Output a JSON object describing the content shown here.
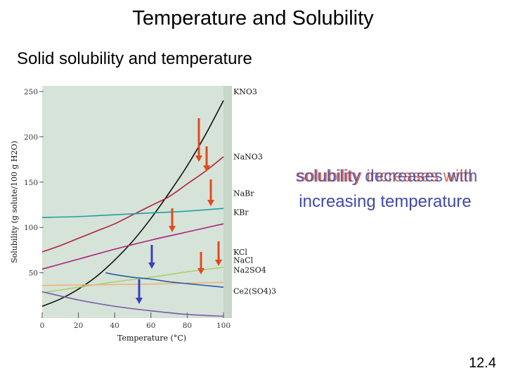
{
  "slide": {
    "title": "Temperature and Solubility",
    "subtitle": "Solid solubility and temperature",
    "note_line1_a": "solubility increases with",
    "note_line1_b": "solubility decreases with",
    "note_line2": "increasing temperature",
    "slide_number": "12.4"
  },
  "colors": {
    "plot_background": "#d6e3d8",
    "up_arrow": "#e24a1e",
    "down_arrow": "#3a3fbf"
  },
  "chart_data": {
    "type": "line",
    "xlabel": "Temperature (°C)",
    "ylabel": "Solubility (g solute/100 g H2O)",
    "xlim": [
      0,
      100
    ],
    "ylim": [
      0,
      250
    ],
    "xticks": [
      0,
      20,
      40,
      60,
      80,
      100
    ],
    "yticks": [
      50,
      100,
      150,
      200,
      250
    ],
    "grid": false,
    "series": [
      {
        "name": "KNO3",
        "color": "#111111",
        "x": [
          0,
          10,
          20,
          30,
          40,
          50,
          60,
          70,
          80,
          90,
          100
        ],
        "y": [
          13,
          21,
          32,
          46,
          64,
          85,
          110,
          138,
          168,
          202,
          240
        ]
      },
      {
        "name": "NaNO3",
        "color": "#b1203a",
        "x": [
          0,
          10,
          20,
          30,
          40,
          50,
          60,
          70,
          80,
          90,
          100
        ],
        "y": [
          73,
          80,
          88,
          96,
          104,
          114,
          124,
          134,
          148,
          162,
          178
        ]
      },
      {
        "name": "NaBr",
        "color": "#1fa0a4",
        "x": [
          0,
          20,
          40,
          60,
          80,
          100
        ],
        "y": [
          111,
          112,
          114,
          116,
          118,
          121
        ]
      },
      {
        "name": "KBr",
        "color": "#a8237e",
        "x": [
          0,
          20,
          40,
          60,
          80,
          100
        ],
        "y": [
          54,
          65,
          76,
          86,
          95,
          104
        ]
      },
      {
        "name": "KCl",
        "color": "#a9d06e",
        "x": [
          0,
          20,
          40,
          60,
          80,
          100
        ],
        "y": [
          28,
          34,
          40,
          45,
          51,
          56
        ]
      },
      {
        "name": "NaCl",
        "color": "#f0b27a",
        "x": [
          0,
          20,
          40,
          60,
          80,
          100
        ],
        "y": [
          36,
          36.5,
          37,
          37.5,
          38.5,
          39.5
        ]
      },
      {
        "name": "Na2SO4",
        "color": "#2a5ca8",
        "x": [
          35,
          40,
          50,
          60,
          70,
          80,
          90,
          100
        ],
        "y": [
          50,
          48,
          45,
          43,
          40,
          38,
          36,
          34
        ]
      },
      {
        "name": "Ce2(SO4)3",
        "color": "#7a5aa8",
        "x": [
          0,
          20,
          40,
          60,
          80,
          100
        ],
        "y": [
          29,
          20,
          13,
          8,
          4,
          2
        ]
      }
    ],
    "series_labels": [
      "KNO3",
      "NaNO3",
      "NaBr",
      "KBr",
      "KCl",
      "NaCl",
      "Na2SO4",
      "Ce2(SO4)3"
    ]
  }
}
